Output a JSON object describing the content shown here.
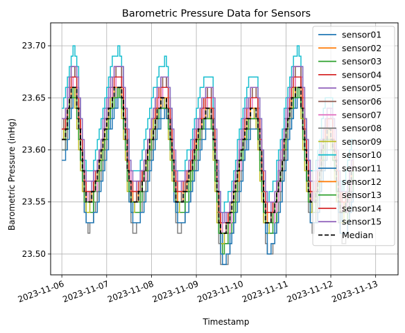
{
  "chart_data": {
    "type": "line",
    "title": "Barometric Pressure Data for Sensors",
    "xlabel": "Timestamp",
    "ylabel": "Barometric Pressure (inHg)",
    "x_type": "date",
    "x_start": "2023-11-06",
    "x_end": "2023-11-12T12:00",
    "xlim": [
      "2023-11-05T18:00",
      "2023-11-13T12:00"
    ],
    "xticks": [
      "2023-11-06",
      "2023-11-07",
      "2023-11-08",
      "2023-11-09",
      "2023-11-10",
      "2023-11-11",
      "2023-11-12",
      "2023-11-13"
    ],
    "ylim": [
      23.48,
      23.722
    ],
    "yticks": [
      "23.50",
      "23.55",
      "23.60",
      "23.65",
      "23.70"
    ],
    "grid": true,
    "legend_position": "upper-right",
    "cycle": {
      "days": [
        0.0,
        0.25,
        0.56,
        1.26,
        1.58,
        2.29,
        2.58,
        3.29,
        3.56,
        4.29,
        4.58,
        5.26,
        5.56,
        5.95,
        6.25,
        6.5
      ],
      "median": [
        23.61,
        23.66,
        23.55,
        23.66,
        23.55,
        23.65,
        23.55,
        23.64,
        23.52,
        23.64,
        23.53,
        23.66,
        23.55,
        23.62,
        23.54,
        23.58
      ]
    },
    "series": [
      {
        "name": "sensor01",
        "color": "#1f77b4",
        "offset": -0.01,
        "amp": 1.05,
        "phase": 0.03
      },
      {
        "name": "sensor02",
        "color": "#ff7f0e",
        "offset": 0.0,
        "amp": 1.0,
        "phase": -0.02
      },
      {
        "name": "sensor03",
        "color": "#2ca02c",
        "offset": -0.01,
        "amp": 1.08,
        "phase": 0.01
      },
      {
        "name": "sensor04",
        "color": "#d62728",
        "offset": 0.01,
        "amp": 1.02,
        "phase": 0.02
      },
      {
        "name": "sensor05",
        "color": "#9467bd",
        "offset": 0.015,
        "amp": 1.1,
        "phase": -0.01
      },
      {
        "name": "sensor06",
        "color": "#8c564b",
        "offset": 0.01,
        "amp": 1.15,
        "phase": 0.0
      },
      {
        "name": "sensor07",
        "color": "#e377c2",
        "offset": 0.005,
        "amp": 1.12,
        "phase": 0.03
      },
      {
        "name": "sensor08",
        "color": "#7f7f7f",
        "offset": -0.015,
        "amp": 1.25,
        "phase": 0.01
      },
      {
        "name": "sensor09",
        "color": "#bcbd22",
        "offset": -0.005,
        "amp": 1.05,
        "phase": -0.03
      },
      {
        "name": "sensor10",
        "color": "#17becf",
        "offset": 0.03,
        "amp": 1.1,
        "phase": 0.0
      },
      {
        "name": "sensor11",
        "color": "#1f77b4",
        "offset": -0.02,
        "amp": 1.1,
        "phase": 0.02
      },
      {
        "name": "sensor12",
        "color": "#ff7f0e",
        "offset": 0.0,
        "amp": 1.02,
        "phase": 0.01
      },
      {
        "name": "sensor13",
        "color": "#2ca02c",
        "offset": -0.005,
        "amp": 1.0,
        "phase": -0.01
      },
      {
        "name": "sensor14",
        "color": "#d62728",
        "offset": 0.01,
        "amp": 1.05,
        "phase": 0.0
      },
      {
        "name": "sensor15",
        "color": "#9467bd",
        "offset": 0.02,
        "amp": 1.08,
        "phase": 0.02
      },
      {
        "name": "Median",
        "color": "#000000",
        "offset": 0.0,
        "amp": 1.0,
        "phase": 0.0,
        "dashed": true
      }
    ]
  }
}
